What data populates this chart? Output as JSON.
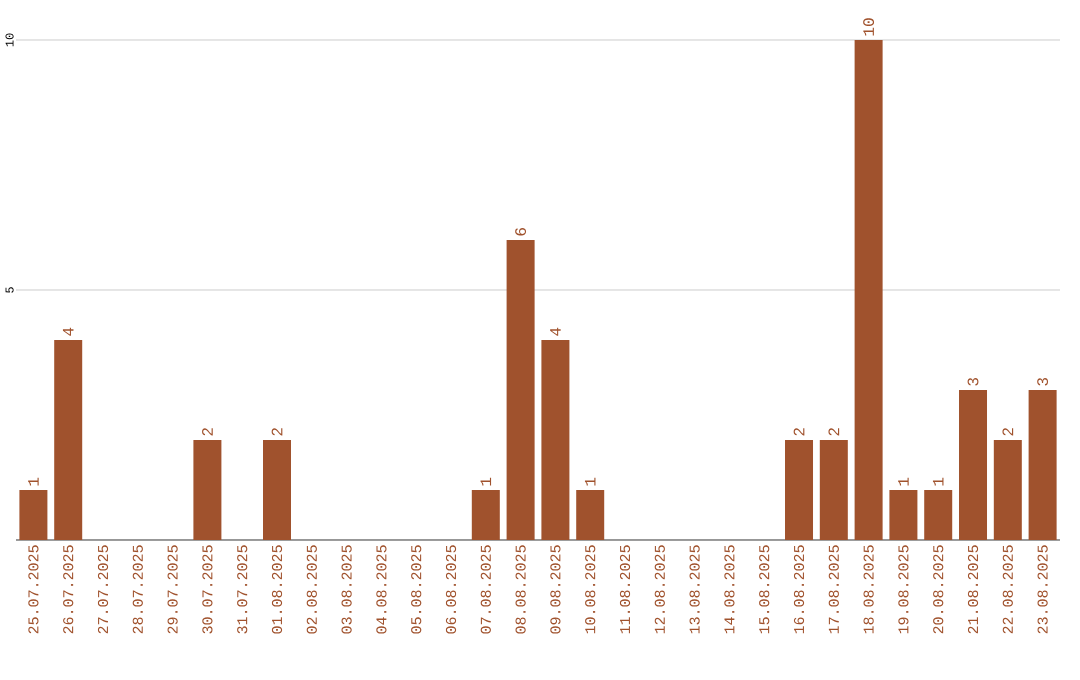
{
  "chart_data": {
    "type": "bar",
    "categories": [
      "25.07.2025",
      "26.07.2025",
      "27.07.2025",
      "28.07.2025",
      "29.07.2025",
      "30.07.2025",
      "31.07.2025",
      "01.08.2025",
      "02.08.2025",
      "03.08.2025",
      "04.08.2025",
      "05.08.2025",
      "06.08.2025",
      "07.08.2025",
      "08.08.2025",
      "09.08.2025",
      "10.08.2025",
      "11.08.2025",
      "12.08.2025",
      "13.08.2025",
      "14.08.2025",
      "15.08.2025",
      "16.08.2025",
      "17.08.2025",
      "18.08.2025",
      "19.08.2025",
      "20.08.2025",
      "21.08.2025",
      "22.08.2025",
      "23.08.2025"
    ],
    "values": [
      1,
      4,
      0,
      0,
      0,
      2,
      0,
      2,
      0,
      0,
      0,
      0,
      0,
      1,
      6,
      4,
      1,
      0,
      0,
      0,
      0,
      0,
      2,
      2,
      10,
      1,
      1,
      3,
      2,
      3
    ],
    "value_labels": [
      "1",
      "4",
      null,
      null,
      null,
      "2",
      null,
      "2",
      null,
      null,
      null,
      null,
      null,
      "1",
      "6",
      "4",
      "1",
      null,
      null,
      null,
      null,
      null,
      "2",
      "2",
      "10",
      "1",
      "1",
      "3",
      "2",
      "3"
    ],
    "color": "#a0522d",
    "ylim": [
      0,
      10
    ],
    "yticks": [
      5,
      10
    ],
    "grid": "y"
  }
}
